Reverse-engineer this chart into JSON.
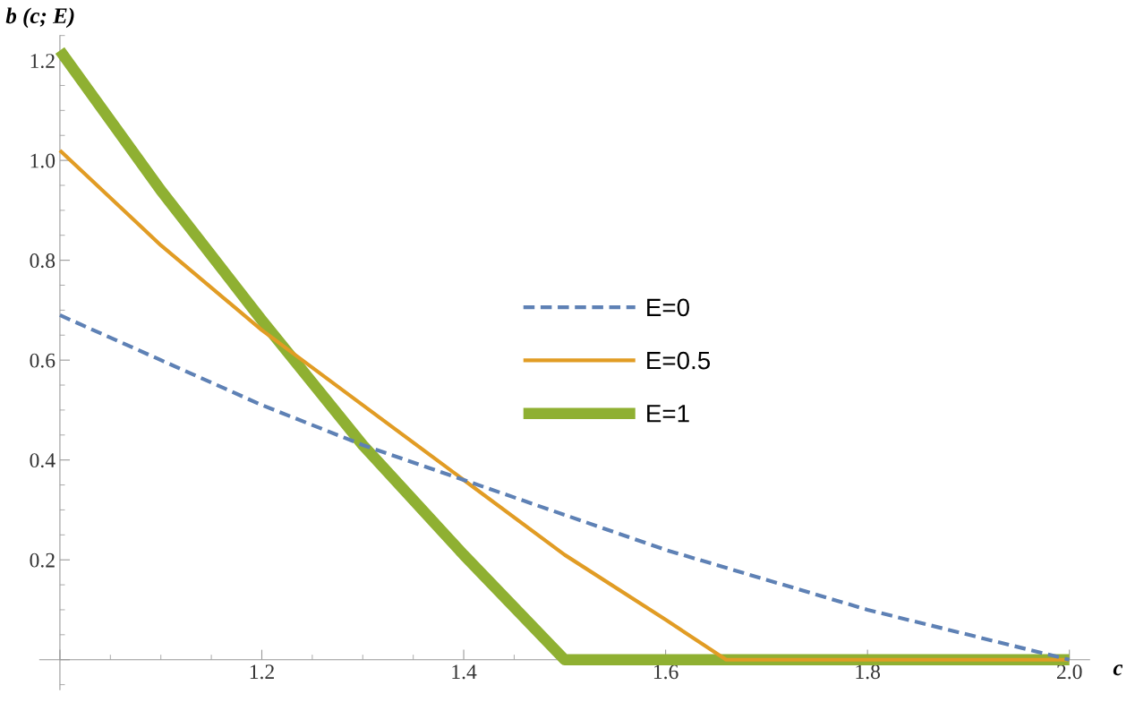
{
  "chart_data": {
    "type": "line",
    "xlabel": "c",
    "ylabel": "b (c; E)",
    "xlim": [
      0.98,
      2.02
    ],
    "ylim": [
      -0.06,
      1.25
    ],
    "xticks": [
      {
        "value": 1.0,
        "label": null
      },
      1.2,
      1.4,
      1.6,
      1.8,
      {
        "value": 2.0,
        "label": "2.0"
      }
    ],
    "yticks": [
      {
        "value": 0,
        "label": null
      },
      0.2,
      0.4,
      0.6,
      0.8,
      {
        "value": 1.0,
        "label": "1.0"
      },
      1.2
    ],
    "grid": false,
    "legend": "center",
    "series": [
      {
        "name": "E=0",
        "color": "#5e81b5",
        "line_style": "dashed",
        "x": [
          1.0,
          1.1,
          1.2,
          1.3,
          1.4,
          1.5,
          1.6,
          1.7,
          1.8,
          1.9,
          2.0
        ],
        "values": [
          0.69,
          0.6,
          0.51,
          0.43,
          0.36,
          0.29,
          0.22,
          0.16,
          0.1,
          0.05,
          0.0
        ]
      },
      {
        "name": "E=0.5",
        "color": "#e19c24",
        "line_style": "solid",
        "x": [
          1.0,
          1.1,
          1.2,
          1.3,
          1.4,
          1.5,
          1.6,
          1.66,
          2.0
        ],
        "values": [
          1.02,
          0.83,
          0.66,
          0.51,
          0.36,
          0.21,
          0.08,
          0.0,
          0.0
        ]
      },
      {
        "name": "E=1",
        "color": "#8fb032",
        "line_style": "solid",
        "x": [
          1.0,
          1.1,
          1.2,
          1.3,
          1.4,
          1.5,
          2.0
        ],
        "values": [
          1.22,
          0.94,
          0.68,
          0.43,
          0.21,
          0.0,
          0.0
        ]
      }
    ]
  }
}
